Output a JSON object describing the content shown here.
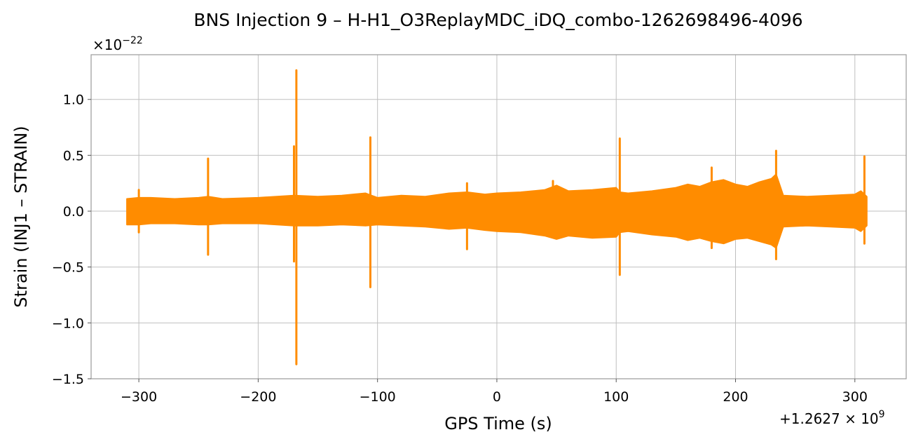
{
  "chart_data": {
    "type": "line",
    "title": "BNS Injection 9 – H-H1_O3ReplayMDC_iDQ_combo-1262698496-4096",
    "xlabel": "GPS Time (s)",
    "ylabel": "Strain (INJ1 – STRAIN)",
    "y_scale_label": {
      "base": "×10",
      "exp": "−22"
    },
    "x_offset_label": {
      "base": "+1.2627 × 10",
      "exp": "9"
    },
    "xlim": [
      -340,
      343
    ],
    "ylim": [
      -1.5,
      1.4
    ],
    "grid": true,
    "color": "#ff8c00",
    "x_ticks": [
      {
        "value": -300,
        "label": "−300"
      },
      {
        "value": -200,
        "label": "−200"
      },
      {
        "value": -100,
        "label": "−100"
      },
      {
        "value": 0,
        "label": "0"
      },
      {
        "value": 100,
        "label": "100"
      },
      {
        "value": 200,
        "label": "200"
      },
      {
        "value": 300,
        "label": "300"
      }
    ],
    "y_ticks": [
      {
        "value": 1.0,
        "label": "1.0"
      },
      {
        "value": 0.5,
        "label": "0.5"
      },
      {
        "value": 0.0,
        "label": "0.0"
      },
      {
        "value": -0.5,
        "label": "−0.5"
      },
      {
        "value": -1.0,
        "label": "−1.0"
      },
      {
        "value": -1.5,
        "label": "−1.5"
      }
    ],
    "series": [
      {
        "envelope": {
          "x": [
            -310,
            -300,
            -290,
            -270,
            -250,
            -242,
            -230,
            -200,
            -170,
            -150,
            -130,
            -110,
            -100,
            -80,
            -60,
            -40,
            -25,
            -10,
            0,
            20,
            40,
            50,
            60,
            80,
            100,
            103,
            110,
            130,
            150,
            160,
            170,
            180,
            190,
            200,
            210,
            220,
            230,
            234,
            240,
            260,
            280,
            300,
            305,
            310
          ],
          "upper": [
            0.11,
            0.12,
            0.12,
            0.11,
            0.12,
            0.13,
            0.11,
            0.12,
            0.14,
            0.13,
            0.14,
            0.16,
            0.12,
            0.14,
            0.13,
            0.16,
            0.17,
            0.15,
            0.16,
            0.17,
            0.19,
            0.23,
            0.18,
            0.19,
            0.21,
            0.17,
            0.16,
            0.18,
            0.21,
            0.24,
            0.22,
            0.26,
            0.28,
            0.24,
            0.22,
            0.26,
            0.29,
            0.33,
            0.14,
            0.13,
            0.14,
            0.15,
            0.18,
            0.13
          ],
          "lower": [
            -0.12,
            -0.12,
            -0.11,
            -0.11,
            -0.12,
            -0.12,
            -0.11,
            -0.11,
            -0.13,
            -0.13,
            -0.12,
            -0.13,
            -0.12,
            -0.13,
            -0.14,
            -0.16,
            -0.15,
            -0.17,
            -0.18,
            -0.19,
            -0.22,
            -0.25,
            -0.22,
            -0.24,
            -0.23,
            -0.19,
            -0.18,
            -0.21,
            -0.23,
            -0.26,
            -0.24,
            -0.27,
            -0.29,
            -0.25,
            -0.24,
            -0.27,
            -0.3,
            -0.33,
            -0.14,
            -0.13,
            -0.14,
            -0.15,
            -0.18,
            -0.13
          ]
        },
        "spikes": [
          {
            "x": -300,
            "top": 0.19,
            "bottom": -0.19
          },
          {
            "x": -242,
            "top": 0.47,
            "bottom": -0.39
          },
          {
            "x": -168,
            "top": 1.26,
            "bottom": -1.37
          },
          {
            "x": -170,
            "top": 0.58,
            "bottom": -0.45
          },
          {
            "x": -106,
            "top": 0.66,
            "bottom": -0.68
          },
          {
            "x": -25,
            "top": 0.25,
            "bottom": -0.34
          },
          {
            "x": 47,
            "top": 0.27,
            "bottom": -0.18
          },
          {
            "x": 103,
            "top": 0.65,
            "bottom": -0.57
          },
          {
            "x": 180,
            "top": 0.39,
            "bottom": -0.33
          },
          {
            "x": 234,
            "top": 0.54,
            "bottom": -0.43
          },
          {
            "x": 308,
            "top": 0.49,
            "bottom": -0.29
          }
        ]
      }
    ]
  }
}
